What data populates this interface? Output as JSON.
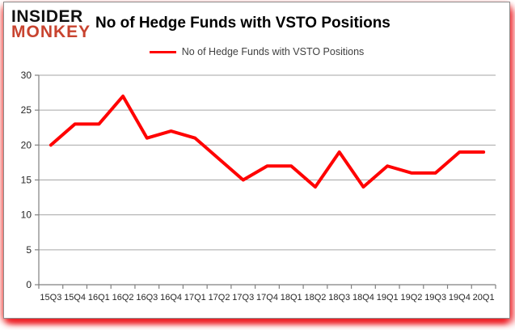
{
  "logo": {
    "line1": "INSIDER",
    "line2": "MONKEY"
  },
  "header": {
    "title": "No of Hedge Funds with VSTO Positions"
  },
  "legend": {
    "label": "No of Hedge Funds with VSTO Positions"
  },
  "colors": {
    "line": "#ff0000",
    "logo_red": "#c8432f",
    "axis": "#808080",
    "gridline": "#a6a6a6",
    "tick_text": "#262626"
  },
  "chart_data": {
    "type": "line",
    "title": "No of Hedge Funds with VSTO Positions",
    "legend_entries": [
      "No of Hedge Funds with VSTO Positions"
    ],
    "legend_position": "top",
    "grid": true,
    "categories": [
      "15Q3",
      "15Q4",
      "16Q1",
      "16Q2",
      "16Q3",
      "16Q4",
      "17Q1",
      "17Q2",
      "17Q3",
      "17Q4",
      "18Q1",
      "18Q2",
      "18Q3",
      "18Q4",
      "19Q1",
      "19Q2",
      "19Q3",
      "19Q4",
      "20Q1"
    ],
    "values": [
      20,
      23,
      23,
      27,
      21,
      22,
      21,
      18,
      15,
      17,
      17,
      14,
      19,
      14,
      17,
      16,
      16,
      19,
      19
    ],
    "xlabel": "",
    "ylabel": "",
    "ylim": [
      0,
      30
    ],
    "yticks": [
      0,
      5,
      10,
      15,
      20,
      25,
      30
    ]
  }
}
